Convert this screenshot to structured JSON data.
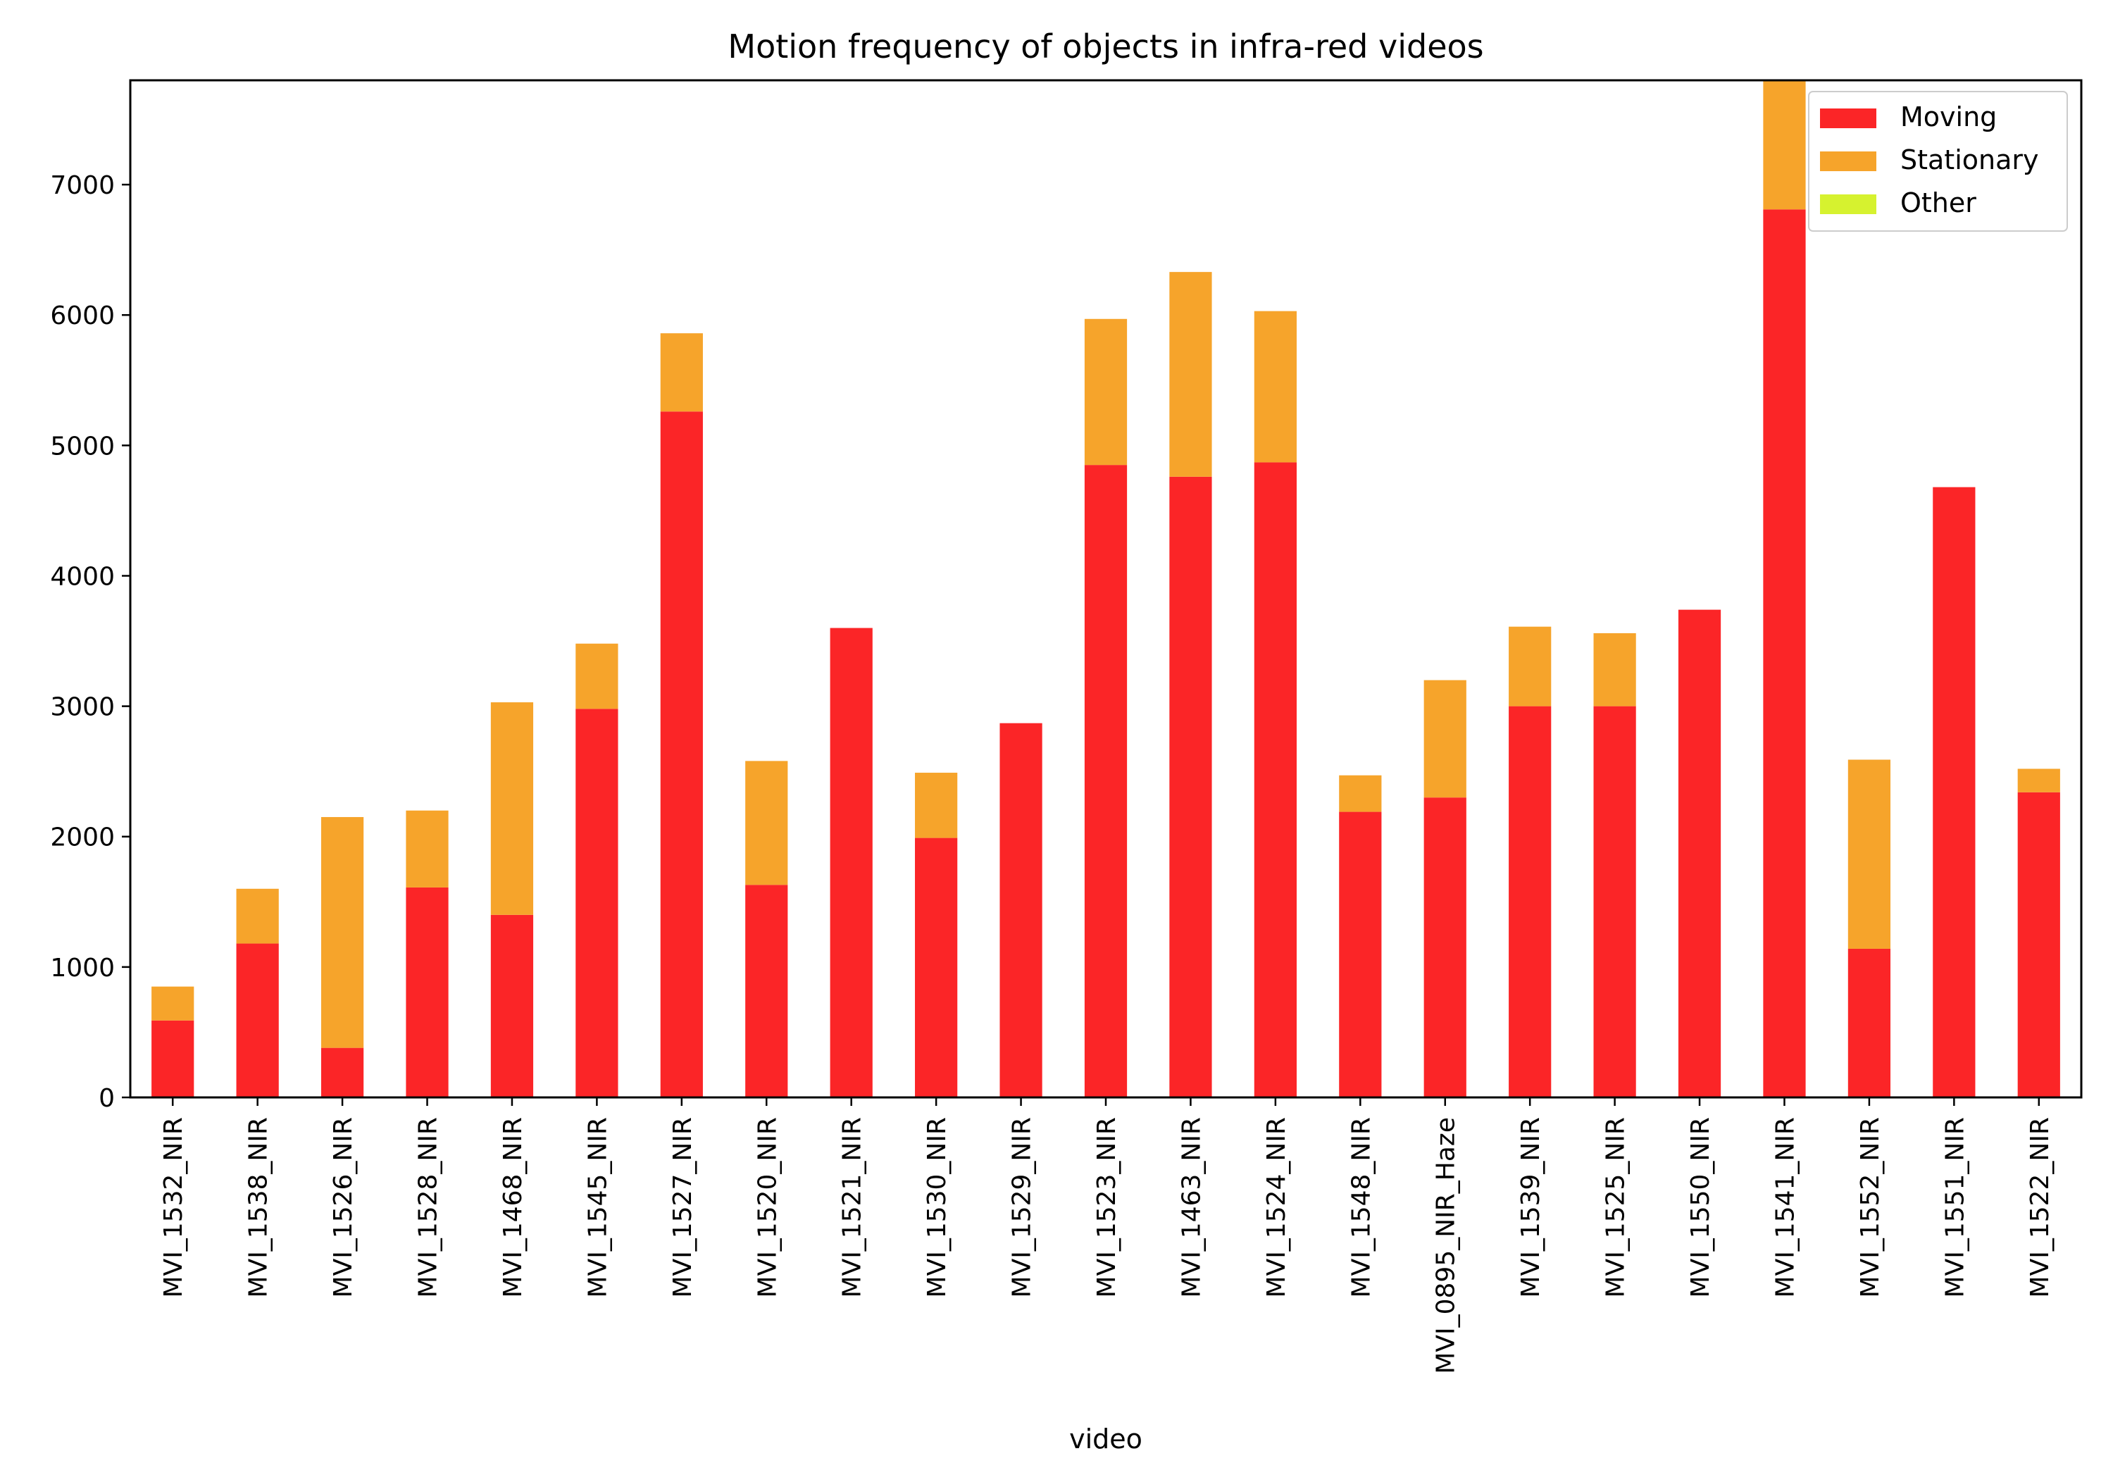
{
  "chart_data": {
    "type": "bar",
    "stacked": true,
    "title": "Motion frequency of objects in infra-red videos",
    "xlabel": "video",
    "ylabel": "",
    "ylim": [
      0,
      7800
    ],
    "yticks": [
      0,
      1000,
      2000,
      3000,
      4000,
      5000,
      6000,
      7000
    ],
    "grid": false,
    "legend_position": "top-right",
    "categories": [
      "MVI_1532_NIR",
      "MVI_1538_NIR",
      "MVI_1526_NIR",
      "MVI_1528_NIR",
      "MVI_1468_NIR",
      "MVI_1545_NIR",
      "MVI_1527_NIR",
      "MVI_1520_NIR",
      "MVI_1521_NIR",
      "MVI_1530_NIR",
      "MVI_1529_NIR",
      "MVI_1523_NIR",
      "MVI_1463_NIR",
      "MVI_1524_NIR",
      "MVI_1548_NIR",
      "MVI_0895_NIR_Haze",
      "MVI_1539_NIR",
      "MVI_1525_NIR",
      "MVI_1550_NIR",
      "MVI_1541_NIR",
      "MVI_1552_NIR",
      "MVI_1551_NIR",
      "MVI_1522_NIR"
    ],
    "series": [
      {
        "name": "Moving",
        "color": "#fb2527",
        "values": [
          590,
          1180,
          380,
          1610,
          1400,
          2980,
          5260,
          1630,
          3600,
          1990,
          2870,
          4850,
          4760,
          4870,
          2190,
          2300,
          3000,
          3000,
          3740,
          6810,
          1140,
          4680,
          2340
        ]
      },
      {
        "name": "Stationary",
        "color": "#f6a42b",
        "values": [
          260,
          420,
          1770,
          590,
          1630,
          500,
          600,
          950,
          0,
          500,
          0,
          1120,
          1570,
          1160,
          280,
          900,
          610,
          560,
          0,
          1290,
          1450,
          0,
          180
        ]
      },
      {
        "name": "Other",
        "color": "#d6f22f",
        "values": [
          0,
          0,
          0,
          0,
          0,
          0,
          0,
          0,
          0,
          0,
          0,
          0,
          0,
          0,
          0,
          0,
          0,
          0,
          0,
          0,
          0,
          0,
          0
        ]
      }
    ]
  }
}
